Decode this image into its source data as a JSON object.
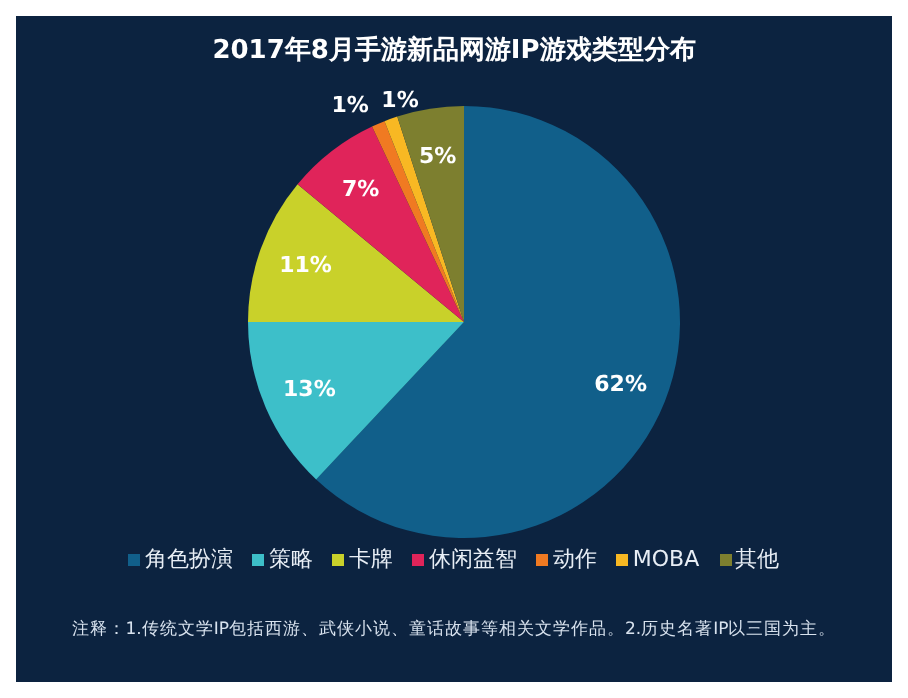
{
  "chart_data": {
    "type": "pie",
    "title": "2017年8月手游新品网游IP游戏类型分布",
    "categories": [
      "角色扮演",
      "策略",
      "卡牌",
      "休闲益智",
      "动作",
      "MOBA",
      "其他"
    ],
    "values": [
      62,
      13,
      11,
      7,
      1,
      1,
      5
    ],
    "colors": [
      "#115f8a",
      "#3dbfc9",
      "#c9d12a",
      "#e0245a",
      "#f07a22",
      "#f8b823",
      "#7d7f2f"
    ],
    "value_labels": [
      "62%",
      "13%",
      "11%",
      "7%",
      "1%",
      "1%",
      "5%"
    ],
    "legend": "bottom",
    "annotations": [
      "注释：1.传统文学IP包括西游、武侠小说、童话故事等相关文学作品。2.历史名著IP以三国为主。"
    ]
  }
}
